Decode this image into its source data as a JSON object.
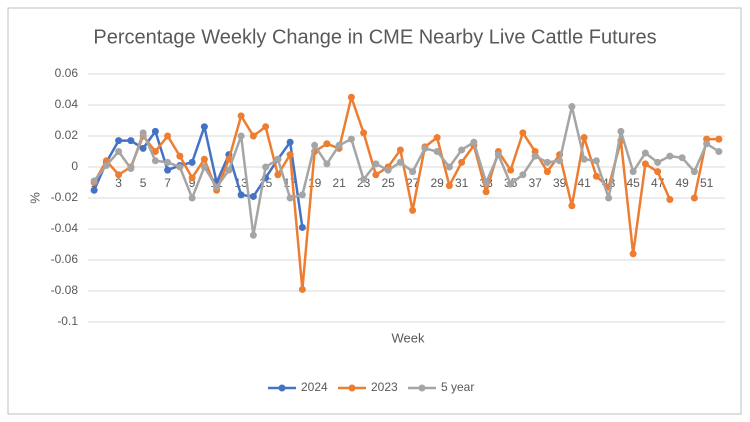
{
  "chart_data": {
    "type": "line",
    "title": "Percentage Weekly Change in CME Nearby Live Cattle Futures",
    "xlabel": "Week",
    "ylabel": "%",
    "categories": [
      1,
      null,
      3,
      null,
      5,
      null,
      7,
      null,
      9,
      null,
      11,
      null,
      13,
      null,
      15,
      null,
      17,
      null,
      19,
      null,
      21,
      null,
      23,
      null,
      25,
      null,
      27,
      null,
      29,
      null,
      31,
      null,
      33,
      null,
      35,
      null,
      37,
      null,
      39,
      null,
      41,
      null,
      43,
      null,
      45,
      null,
      47,
      null,
      49,
      null,
      51,
      null
    ],
    "ylim": [
      -0.1,
      0.06
    ],
    "yticks": [
      0.06,
      0.04,
      0.02,
      0,
      -0.02,
      -0.04,
      -0.06,
      -0.08,
      -0.1
    ],
    "grid": true,
    "series": [
      {
        "name": "2024",
        "color": "#4472c4",
        "values": [
          -0.015,
          0.003,
          0.017,
          0.017,
          0.012,
          0.023,
          -0.002,
          0.001,
          0.003,
          0.026,
          -0.01,
          0.008,
          -0.018,
          -0.019,
          -0.007,
          0.005,
          0.016,
          -0.039,
          null,
          null,
          null,
          null,
          null,
          null,
          null,
          null,
          null,
          null,
          null,
          null,
          null,
          null,
          null,
          null,
          null,
          null,
          null,
          null,
          null,
          null,
          null,
          null,
          null,
          null,
          null,
          null,
          null,
          null,
          null,
          null,
          null,
          null
        ]
      },
      {
        "name": "2023",
        "color": "#ed7d31",
        "values": [
          -0.01,
          0.004,
          -0.005,
          0,
          0.02,
          0.01,
          0.02,
          0.007,
          -0.007,
          0.005,
          -0.015,
          0.005,
          0.033,
          0.02,
          0.026,
          -0.005,
          0.008,
          -0.079,
          0.01,
          0.015,
          0.012,
          0.045,
          0.022,
          -0.005,
          0,
          0.011,
          -0.028,
          0.013,
          0.019,
          -0.012,
          0.003,
          0.014,
          -0.016,
          0.01,
          -0.002,
          0.022,
          0.01,
          -0.003,
          0.008,
          -0.025,
          0.019,
          -0.006,
          -0.013,
          0.017,
          -0.056,
          0.002,
          -0.003,
          -0.021,
          null,
          -0.02,
          0.018,
          0.018
        ]
      },
      {
        "name": "5 year",
        "color": "#a5a5a5",
        "values": [
          -0.009,
          0.001,
          0.01,
          -0.001,
          0.022,
          0.004,
          0.003,
          0,
          -0.02,
          0,
          -0.013,
          -0.002,
          0.02,
          -0.044,
          0,
          0.005,
          -0.02,
          -0.018,
          0.014,
          0.002,
          0.014,
          0.018,
          -0.008,
          0.002,
          -0.002,
          0.003,
          -0.003,
          0.012,
          0.01,
          0,
          0.011,
          0.016,
          -0.01,
          0.008,
          -0.011,
          -0.005,
          0.007,
          0.003,
          0.004,
          0.039,
          0.005,
          0.004,
          -0.02,
          0.023,
          -0.003,
          0.009,
          0.003,
          0.007,
          0.006,
          -0.003,
          0.015,
          0.01
        ]
      }
    ]
  }
}
